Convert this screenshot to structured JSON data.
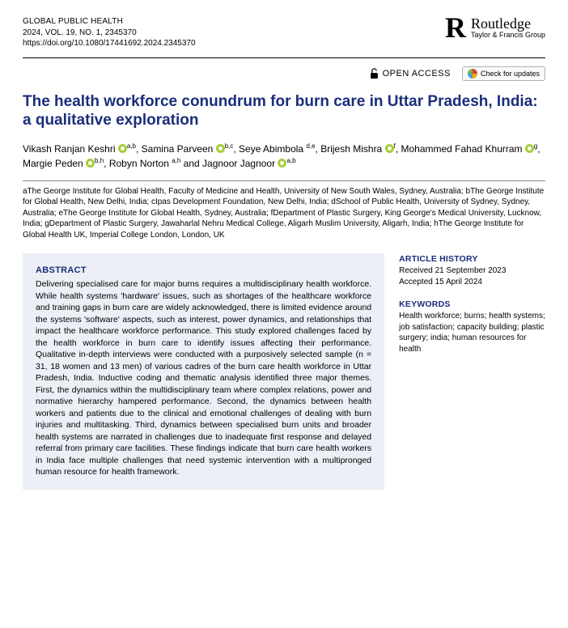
{
  "header": {
    "journal": "GLOBAL PUBLIC HEALTH",
    "issue": "2024, VOL. 19, NO. 1, 2345370",
    "doi": "https://doi.org/10.1080/17441692.2024.2345370",
    "publisher_brand": "Routledge",
    "publisher_tag": "Taylor & Francis Group"
  },
  "access": {
    "open_access": "OPEN ACCESS",
    "check_updates": "Check for updates"
  },
  "title": "The health workforce conundrum for burn care in Uttar Pradesh, India: a qualitative exploration",
  "authors_html": "Vikash Ranjan Keshri |orcid| a,b, Samina Parveen |orcid| b,c, Seye Abimbola d,e, Brijesh Mishra |orcid| f, Mohammed Fahad Khurram |orcid| g, Margie Peden |orcid| b,h, Robyn Norton a,h and Jagnoor Jagnoor |orcid| a,b",
  "authors": [
    {
      "name": "Vikash Ranjan Keshri",
      "orcid": true,
      "aff": "a,b"
    },
    {
      "name": "Samina Parveen",
      "orcid": true,
      "aff": "b,c"
    },
    {
      "name": "Seye Abimbola",
      "orcid": false,
      "aff": "d,e"
    },
    {
      "name": "Brijesh Mishra",
      "orcid": true,
      "aff": "f"
    },
    {
      "name": "Mohammed Fahad Khurram",
      "orcid": true,
      "aff": "g"
    },
    {
      "name": "Margie Peden",
      "orcid": true,
      "aff": "b,h"
    },
    {
      "name": "Robyn Norton",
      "orcid": false,
      "aff": "a,h"
    },
    {
      "name": "Jagnoor Jagnoor",
      "orcid": true,
      "aff": "a,b"
    }
  ],
  "affiliations": "aThe George Institute for Global Health, Faculty of Medicine and Health, University of New South Wales, Sydney, Australia; bThe George Institute for Global Health, New Delhi, India; cIpas Development Foundation, New Delhi, India; dSchool of Public Health, University of Sydney, Sydney, Australia; eThe George Institute for Global Health, Sydney, Australia; fDepartment of Plastic Surgery, King George's Medical University, Lucknow, India; gDepartment of Plastic Surgery, Jawaharlal Nehru Medical College, Aligarh Muslim University, Aligarh, India; hThe George Institute for Global Health UK, Imperial College London, London, UK",
  "abstract": {
    "heading": "ABSTRACT",
    "text": "Delivering specialised care for major burns requires a multidisciplinary health workforce. While health systems 'hardware' issues, such as shortages of the healthcare workforce and training gaps in burn care are widely acknowledged, there is limited evidence around the systems 'software' aspects, such as interest, power dynamics, and relationships that impact the healthcare workforce performance. This study explored challenges faced by the health workforce in burn care to identify issues affecting their performance. Qualitative in-depth interviews were conducted with a purposively selected sample (n = 31, 18 women and 13 men) of various cadres of the burn care health workforce in Uttar Pradesh, India. Inductive coding and thematic analysis identified three major themes. First, the dynamics within the multidisciplinary team where complex relations, power and normative hierarchy hampered performance. Second, the dynamics between health workers and patients due to the clinical and emotional challenges of dealing with burn injuries and multitasking. Third, dynamics between specialised burn units and broader health systems are narrated in challenges due to inadequate first response and delayed referral from primary care facilities. These findings indicate that burn care health workers in India face multiple challenges that need systemic intervention with a multipronged human resource for health framework."
  },
  "history": {
    "heading": "ARTICLE HISTORY",
    "received": "Received 21 September 2023",
    "accepted": "Accepted 15 April 2024"
  },
  "keywords": {
    "heading": "KEYWORDS",
    "text": "Health workforce; burns; health systems; job satisfaction; capacity building; plastic surgery; india; human resources for health"
  },
  "colors": {
    "title": "#1a2e7a",
    "abstract_bg": "#eceff5",
    "orcid": "#a6ce39"
  }
}
